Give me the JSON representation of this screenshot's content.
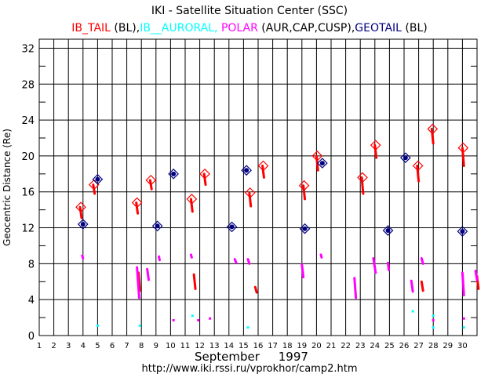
{
  "header": {
    "title": "IKI - Satellite Situation Center (SSC)",
    "subtitle_parts": [
      {
        "text": "IB_TAIL",
        "color": "#ff0000"
      },
      {
        "text": " (BL),",
        "color": "#000000"
      },
      {
        "text": "IB__AURORAL, ",
        "color": "#00ffff"
      },
      {
        "text": "POLAR",
        "color": "#ff00ff"
      },
      {
        "text": " (AUR,CAP,CUSP),",
        "color": "#000000"
      },
      {
        "text": "GEOTAIL",
        "color": "#000080"
      },
      {
        "text": " (BL)",
        "color": "#000000"
      }
    ]
  },
  "footer": {
    "month": "September",
    "year": "1997",
    "url": "http://www.iki.rssi.ru/vprokhor/camp2.htm"
  },
  "chart_data": {
    "type": "scatter",
    "ylabel": "Geocentric Distance (Re)",
    "xlabel": "September 1997",
    "xlim": [
      1,
      31
    ],
    "ylim": [
      0,
      33
    ],
    "x_ticks": [
      "1",
      "2",
      "3",
      "4",
      "5",
      "6",
      "7",
      "8",
      "9",
      "10",
      "11",
      "12",
      "13",
      "14",
      "15",
      "16",
      "17",
      "18",
      "19",
      "20",
      "21",
      "22",
      "23",
      "24",
      "25",
      "26",
      "27",
      "28",
      "29",
      "30"
    ],
    "y_ticks": [
      "0",
      "4",
      "8",
      "12",
      "16",
      "20",
      "24",
      "28",
      "32"
    ],
    "grid": true,
    "series": [
      {
        "name": "IB_TAIL",
        "color": "#ff0000",
        "kind": "arc-segments",
        "segments": [
          {
            "x0": 3.8,
            "x1": 3.9,
            "y0": 14.3,
            "y1": 13.1
          },
          {
            "x0": 4.7,
            "x1": 4.8,
            "y0": 16.8,
            "y1": 15.8
          },
          {
            "x0": 7.65,
            "x1": 7.75,
            "y0": 14.8,
            "y1": 13.6
          },
          {
            "x0": 8.6,
            "x1": 8.7,
            "y0": 17.3,
            "y1": 16.3
          },
          {
            "x0": 11.4,
            "x1": 11.5,
            "y0": 15.2,
            "y1": 13.8
          },
          {
            "x0": 12.3,
            "x1": 12.4,
            "y0": 18.0,
            "y1": 16.8
          },
          {
            "x0": 15.4,
            "x1": 15.5,
            "y0": 15.9,
            "y1": 14.4
          },
          {
            "x0": 16.3,
            "x1": 16.4,
            "y0": 18.9,
            "y1": 17.6
          },
          {
            "x0": 19.1,
            "x1": 19.2,
            "y0": 16.7,
            "y1": 15.2
          },
          {
            "x0": 20.0,
            "x1": 20.1,
            "y0": 20.0,
            "y1": 18.4
          },
          {
            "x0": 23.1,
            "x1": 23.2,
            "y0": 17.6,
            "y1": 15.8
          },
          {
            "x0": 24.0,
            "x1": 24.1,
            "y0": 21.2,
            "y1": 19.8
          },
          {
            "x0": 26.9,
            "x1": 27.0,
            "y0": 18.9,
            "y1": 17.2
          },
          {
            "x0": 27.9,
            "x1": 28.0,
            "y0": 23.0,
            "y1": 21.4
          },
          {
            "x0": 30.0,
            "x1": 30.1,
            "y0": 20.9,
            "y1": 18.9
          },
          {
            "x0": 7.8,
            "x1": 7.9,
            "y0": 7.0,
            "y1": 5.0
          },
          {
            "x0": 11.6,
            "x1": 11.7,
            "y0": 6.8,
            "y1": 5.2
          },
          {
            "x0": 15.8,
            "x1": 15.9,
            "y0": 5.4,
            "y1": 4.8
          },
          {
            "x0": 27.2,
            "x1": 27.3,
            "y0": 6.0,
            "y1": 5.0
          },
          {
            "x0": 31.0,
            "x1": 31.1,
            "y0": 6.6,
            "y1": 5.2
          }
        ]
      },
      {
        "name": "IB__AURORAL",
        "color": "#00ffff",
        "kind": "points",
        "points": [
          [
            5.0,
            1.1
          ],
          [
            7.9,
            1.1
          ],
          [
            11.5,
            2.2
          ],
          [
            15.3,
            0.9
          ],
          [
            26.6,
            2.7
          ],
          [
            28.0,
            2.2
          ],
          [
            28.0,
            0.9
          ],
          [
            30.1,
            0.9
          ]
        ]
      },
      {
        "name": "POLAR",
        "color": "#ff00ff",
        "kind": "arc-segments",
        "segments": [
          {
            "x0": 3.95,
            "x1": 4.0,
            "y0": 8.9,
            "y1": 8.6
          },
          {
            "x0": 7.7,
            "x1": 7.85,
            "y0": 7.6,
            "y1": 4.2
          },
          {
            "x0": 8.4,
            "x1": 8.5,
            "y0": 7.4,
            "y1": 6.2
          },
          {
            "x0": 9.2,
            "x1": 9.25,
            "y0": 8.8,
            "y1": 8.4
          },
          {
            "x0": 11.4,
            "x1": 11.45,
            "y0": 9.0,
            "y1": 8.7
          },
          {
            "x0": 14.4,
            "x1": 14.5,
            "y0": 8.5,
            "y1": 8.1
          },
          {
            "x0": 15.3,
            "x1": 15.4,
            "y0": 8.5,
            "y1": 8.0
          },
          {
            "x0": 19.0,
            "x1": 19.1,
            "y0": 7.9,
            "y1": 6.5
          },
          {
            "x0": 20.3,
            "x1": 20.35,
            "y0": 9.0,
            "y1": 8.7
          },
          {
            "x0": 22.6,
            "x1": 22.7,
            "y0": 6.4,
            "y1": 4.2
          },
          {
            "x0": 23.9,
            "x1": 24.05,
            "y0": 8.6,
            "y1": 7.0
          },
          {
            "x0": 24.9,
            "x1": 24.95,
            "y0": 8.1,
            "y1": 7.3
          },
          {
            "x0": 26.5,
            "x1": 26.6,
            "y0": 6.1,
            "y1": 4.9
          },
          {
            "x0": 27.2,
            "x1": 27.3,
            "y0": 8.6,
            "y1": 8.0
          },
          {
            "x0": 30.0,
            "x1": 30.1,
            "y0": 7.0,
            "y1": 4.5
          },
          {
            "x0": 30.9,
            "x1": 31.0,
            "y0": 7.2,
            "y1": 6.2
          }
        ],
        "points": [
          [
            30.1,
            1.9
          ],
          [
            28.0,
            1.7
          ],
          [
            10.2,
            1.7
          ],
          [
            11.9,
            1.7
          ],
          [
            12.7,
            1.9
          ]
        ]
      },
      {
        "name": "GEOTAIL",
        "color": "#000080",
        "kind": "diamond-points",
        "points": [
          [
            4.0,
            12.4
          ],
          [
            5.0,
            17.4
          ],
          [
            9.1,
            12.2
          ],
          [
            10.2,
            18.0
          ],
          [
            14.2,
            12.1
          ],
          [
            15.2,
            18.4
          ],
          [
            19.2,
            11.9
          ],
          [
            20.4,
            19.2
          ],
          [
            24.9,
            11.7
          ],
          [
            26.1,
            19.8
          ],
          [
            30.0,
            11.6
          ]
        ]
      }
    ],
    "open_markers": [
      {
        "x": 3.85,
        "y": 14.3,
        "color": "#ff0000"
      },
      {
        "x": 4.75,
        "y": 16.8,
        "color": "#ff0000"
      },
      {
        "x": 7.7,
        "y": 14.8,
        "color": "#ff0000"
      },
      {
        "x": 8.65,
        "y": 17.3,
        "color": "#ff0000"
      },
      {
        "x": 11.45,
        "y": 15.2,
        "color": "#ff0000"
      },
      {
        "x": 12.35,
        "y": 18.0,
        "color": "#ff0000"
      },
      {
        "x": 15.45,
        "y": 15.9,
        "color": "#ff0000"
      },
      {
        "x": 16.35,
        "y": 18.9,
        "color": "#ff0000"
      },
      {
        "x": 19.15,
        "y": 16.7,
        "color": "#ff0000"
      },
      {
        "x": 20.05,
        "y": 20.0,
        "color": "#ff0000"
      },
      {
        "x": 23.15,
        "y": 17.6,
        "color": "#ff0000"
      },
      {
        "x": 24.05,
        "y": 21.2,
        "color": "#ff0000"
      },
      {
        "x": 26.95,
        "y": 18.9,
        "color": "#ff0000"
      },
      {
        "x": 27.95,
        "y": 23.0,
        "color": "#ff0000"
      },
      {
        "x": 30.05,
        "y": 20.9,
        "color": "#ff0000"
      },
      {
        "x": 4.0,
        "y": 12.4,
        "color": "#000080"
      },
      {
        "x": 5.0,
        "y": 17.4,
        "color": "#000080"
      },
      {
        "x": 9.1,
        "y": 12.2,
        "color": "#000080"
      },
      {
        "x": 10.2,
        "y": 18.0,
        "color": "#000080"
      },
      {
        "x": 14.2,
        "y": 12.1,
        "color": "#000080"
      },
      {
        "x": 15.2,
        "y": 18.4,
        "color": "#000080"
      },
      {
        "x": 19.2,
        "y": 11.9,
        "color": "#000080"
      },
      {
        "x": 20.4,
        "y": 19.2,
        "color": "#000080"
      },
      {
        "x": 24.9,
        "y": 11.7,
        "color": "#000080"
      },
      {
        "x": 26.1,
        "y": 19.8,
        "color": "#000080"
      },
      {
        "x": 30.0,
        "y": 11.6,
        "color": "#000080"
      }
    ]
  }
}
